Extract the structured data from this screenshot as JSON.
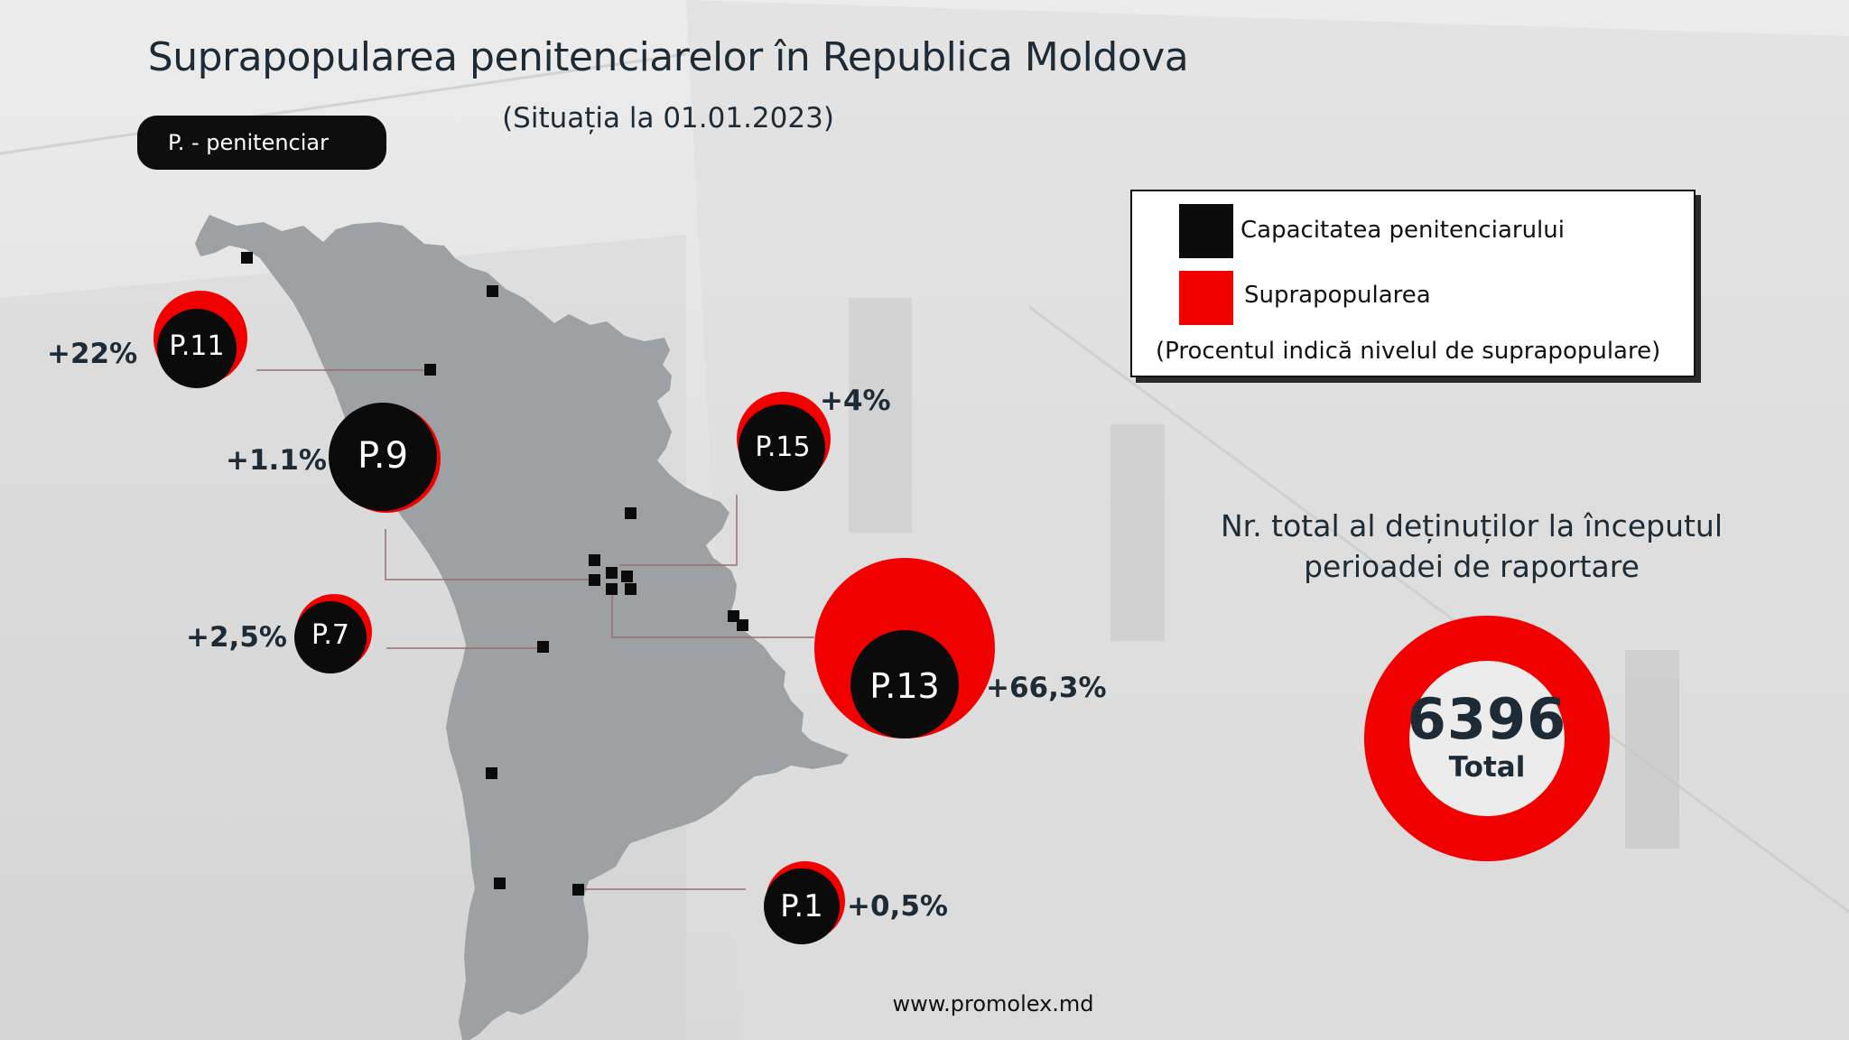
{
  "title": "Suprapopularea penitenciarelor în Republica Moldova",
  "subtitle": "(Situația la 01.01.2023)",
  "abbreviation_note": "P. - penitenciar",
  "legend": {
    "capacity_label": "Capacitatea penitenciarului",
    "overpopulation_label": "Suprapopularea",
    "note": "(Procentul indică nivelul de suprapopulare)",
    "capacity_color": "#0b0b0b",
    "overpopulation_color": "#f20000"
  },
  "prisons": [
    {
      "id": "p11",
      "label": "P.11",
      "overpopulation": "+22%"
    },
    {
      "id": "p9",
      "label": "P.9",
      "overpopulation": "+1.1%"
    },
    {
      "id": "p15",
      "label": "P.15",
      "overpopulation": "+4%"
    },
    {
      "id": "p7",
      "label": "P.7",
      "overpopulation": "+2,5%"
    },
    {
      "id": "p13",
      "label": "P.13",
      "overpopulation": "+66,3%"
    },
    {
      "id": "p1",
      "label": "P.1",
      "overpopulation": "+0,5%"
    }
  ],
  "total": {
    "heading_line1": "Nr. total al deținuților la începutul",
    "heading_line2": "perioadei de raportare",
    "value": "6396",
    "label": "Total"
  },
  "website": "www.promolex.md",
  "colors": {
    "map_fill": "#9ea1a4",
    "accent_red": "#f20000",
    "text_dark": "#1d2b36"
  }
}
